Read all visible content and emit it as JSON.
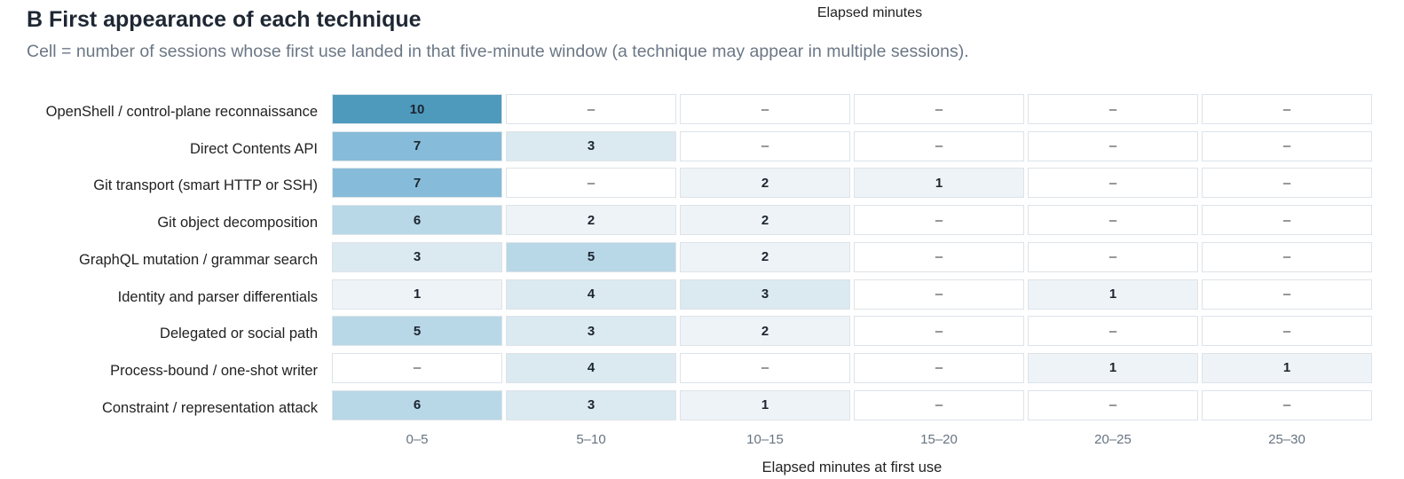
{
  "header": {
    "title": "B First appearance of each technique",
    "subtitle": "Cell = number of sessions whose first use landed in that five-minute window (a technique may appear in multiple sessions).",
    "top_axis_label": "Elapsed minutes"
  },
  "colors": {
    "scale": [
      "#ffffff",
      "#eef3f7",
      "#dbe9f1",
      "#b8d7e7",
      "#86bcd9",
      "#4e9abd"
    ],
    "border": "#dde3e8"
  },
  "chart_data": {
    "type": "heatmap",
    "title": "B First appearance of each technique",
    "xlabel": "Elapsed minutes at first use",
    "ylabel": "",
    "empty_symbol": "–",
    "categories": [
      "0–5",
      "5–10",
      "10–15",
      "15–20",
      "20–25",
      "25–30"
    ],
    "rows": [
      "OpenShell / control-plane reconnaissance",
      "Direct Contents API",
      "Git transport (smart HTTP or SSH)",
      "Git object decomposition",
      "GraphQL mutation / grammar search",
      "Identity and parser differentials",
      "Delegated or social path",
      "Process-bound / one-shot writer",
      "Constraint / representation attack"
    ],
    "values": [
      [
        10,
        0,
        0,
        0,
        0,
        0
      ],
      [
        7,
        3,
        0,
        0,
        0,
        0
      ],
      [
        7,
        0,
        2,
        1,
        0,
        0
      ],
      [
        6,
        2,
        2,
        0,
        0,
        0
      ],
      [
        3,
        5,
        2,
        0,
        0,
        0
      ],
      [
        1,
        4,
        3,
        0,
        1,
        0
      ],
      [
        5,
        3,
        2,
        0,
        0,
        0
      ],
      [
        0,
        4,
        0,
        0,
        1,
        1
      ],
      [
        6,
        3,
        1,
        0,
        0,
        0
      ]
    ]
  }
}
